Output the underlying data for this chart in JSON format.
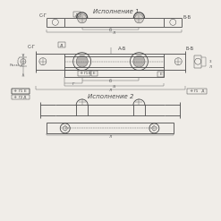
{
  "bg_color": "#f0ede8",
  "line_color": "#4a4a4a",
  "dim_color": "#6a6a6a",
  "title1": "Исполнение 1",
  "title2": "Исполнение 2",
  "label_AB": "А-Б",
  "label_BB": "Б-Б",
  "label_CG": "С-Г",
  "label_Razm": "Разм.д"
}
